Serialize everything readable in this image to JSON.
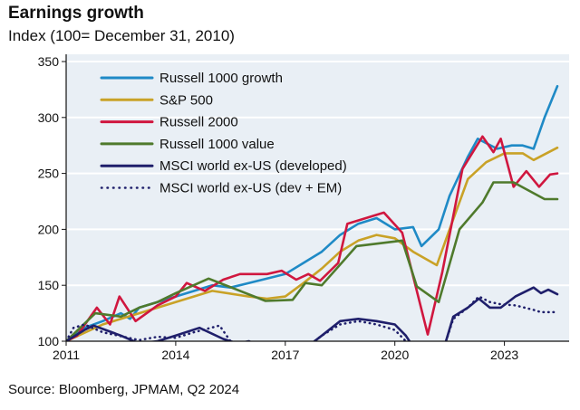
{
  "chart_data": {
    "type": "line",
    "title": "Earnings growth",
    "subtitle": "Index (100= December 31, 2010)",
    "source": "Source: Bloomberg, JPMAM, Q2 2024",
    "xlim": [
      2011,
      2024.8
    ],
    "ylim": [
      100,
      350
    ],
    "xticks": [
      "2011",
      "2014",
      "2017",
      "2020",
      "2023"
    ],
    "yticks": [
      "100",
      "150",
      "200",
      "250",
      "300",
      "350"
    ],
    "grid": true,
    "legend_position": "top-left",
    "series": [
      {
        "name": "Russell 1000 growth",
        "color": "#1f8ac6",
        "dash": false,
        "x": [
          2011,
          2011.5,
          2012,
          2012.5,
          2012.75,
          2013,
          2014,
          2015,
          2015.5,
          2016,
          2017,
          2017.5,
          2018,
          2018.5,
          2019,
          2019.5,
          2020,
          2020.5,
          2020.73,
          2021.2,
          2021.5,
          2022,
          2022.27,
          2022.8,
          2023.2,
          2023.5,
          2023.8,
          2024.1,
          2024.45
        ],
        "y": [
          100,
          112,
          118,
          125,
          120,
          130,
          140,
          150,
          148,
          152,
          160,
          170,
          180,
          195,
          205,
          210,
          200,
          202,
          185,
          200,
          230,
          265,
          281,
          272,
          275,
          275,
          272,
          300,
          328
        ]
      },
      {
        "name": "S&P 500",
        "color": "#c9a227",
        "dash": false,
        "x": [
          2011,
          2012,
          2013,
          2014,
          2015,
          2016,
          2016.5,
          2017,
          2017.5,
          2018,
          2018.5,
          2019,
          2019.5,
          2020,
          2020.5,
          2021.15,
          2021.5,
          2022,
          2022.5,
          2023,
          2023.5,
          2023.8,
          2024.45
        ],
        "y": [
          100,
          115,
          125,
          135,
          145,
          140,
          138,
          140,
          152,
          165,
          180,
          190,
          195,
          192,
          180,
          168,
          200,
          245,
          260,
          268,
          268,
          262,
          273
        ]
      },
      {
        "name": "Russell 2000",
        "color": "#d0173f",
        "dash": false,
        "x": [
          2011,
          2011.3,
          2011.84,
          2012.2,
          2012.46,
          2012.9,
          2013.5,
          2014,
          2014.3,
          2014.8,
          2015.3,
          2015.76,
          2016.5,
          2016.9,
          2017.3,
          2017.63,
          2017.95,
          2018.45,
          2018.7,
          2019.7,
          2020.2,
          2020.9,
          2021.3,
          2021.85,
          2022.4,
          2022.7,
          2022.9,
          2023.25,
          2023.6,
          2023.95,
          2024.25,
          2024.45
        ],
        "y": [
          100,
          105,
          130,
          115,
          140,
          118,
          132,
          140,
          152,
          145,
          155,
          160,
          160,
          163,
          155,
          160,
          154,
          170,
          205,
          215,
          197,
          106,
          162,
          254,
          283,
          269,
          281,
          238,
          252,
          238,
          249,
          250
        ]
      },
      {
        "name": "Russell 1000 value",
        "color": "#4f7a2c",
        "dash": false,
        "x": [
          2011,
          2011.8,
          2012.5,
          2013,
          2013.5,
          2014,
          2014.9,
          2016.46,
          2017.2,
          2017.55,
          2018,
          2018.95,
          2020.2,
          2020.6,
          2021.2,
          2021.77,
          2022.4,
          2022.7,
          2023.25,
          2024.1,
          2024.45
        ],
        "y": [
          100,
          125,
          122,
          130,
          135,
          143,
          156,
          136,
          137,
          152,
          150,
          185,
          190,
          149,
          135,
          200,
          224,
          242,
          242,
          227,
          227
        ]
      },
      {
        "name": "MSCI world ex-US (developed)",
        "color": "#1f1f6b",
        "dash": false,
        "x": [
          2011,
          2011.5,
          2011.75,
          2012.5,
          2013,
          2013.5,
          2014,
          2014.65,
          2015.3,
          2015.7,
          2016,
          2016.3,
          2017,
          2017.6,
          2018,
          2018.5,
          2019,
          2019.5,
          2020,
          2020.3,
          2020.6,
          2021,
          2021.4,
          2021.6,
          2022,
          2022.3,
          2022.6,
          2022.9,
          2023.3,
          2023.8,
          2024,
          2024.2,
          2024.45
        ],
        "y": [
          100,
          110,
          114,
          105,
          98,
          100,
          105,
          112,
          102,
          98,
          100,
          96,
          90,
          95,
          105,
          118,
          120,
          118,
          115,
          105,
          90,
          85,
          100,
          122,
          130,
          138,
          130,
          130,
          140,
          148,
          143,
          146,
          142
        ]
      },
      {
        "name": "MSCI world ex-US (dev + EM)",
        "color": "#1f1f6b",
        "dash": true,
        "x": [
          2011,
          2011.2,
          2011.5,
          2012,
          2013,
          2013.5,
          2014,
          2014.5,
          2015.2,
          2015.5,
          2016,
          2017,
          2017.6,
          2018,
          2018.5,
          2019,
          2019.5,
          2020,
          2020.3,
          2021,
          2021.4,
          2021.6,
          2022,
          2022.3,
          2022.6,
          2022.9,
          2023.3,
          2023.8,
          2024,
          2024.45
        ],
        "y": [
          100,
          112,
          115,
          108,
          101,
          104,
          103,
          108,
          114,
          100,
          95,
          90,
          95,
          105,
          115,
          118,
          115,
          110,
          100,
          85,
          100,
          120,
          130,
          140,
          135,
          133,
          132,
          128,
          126,
          126
        ]
      }
    ]
  }
}
